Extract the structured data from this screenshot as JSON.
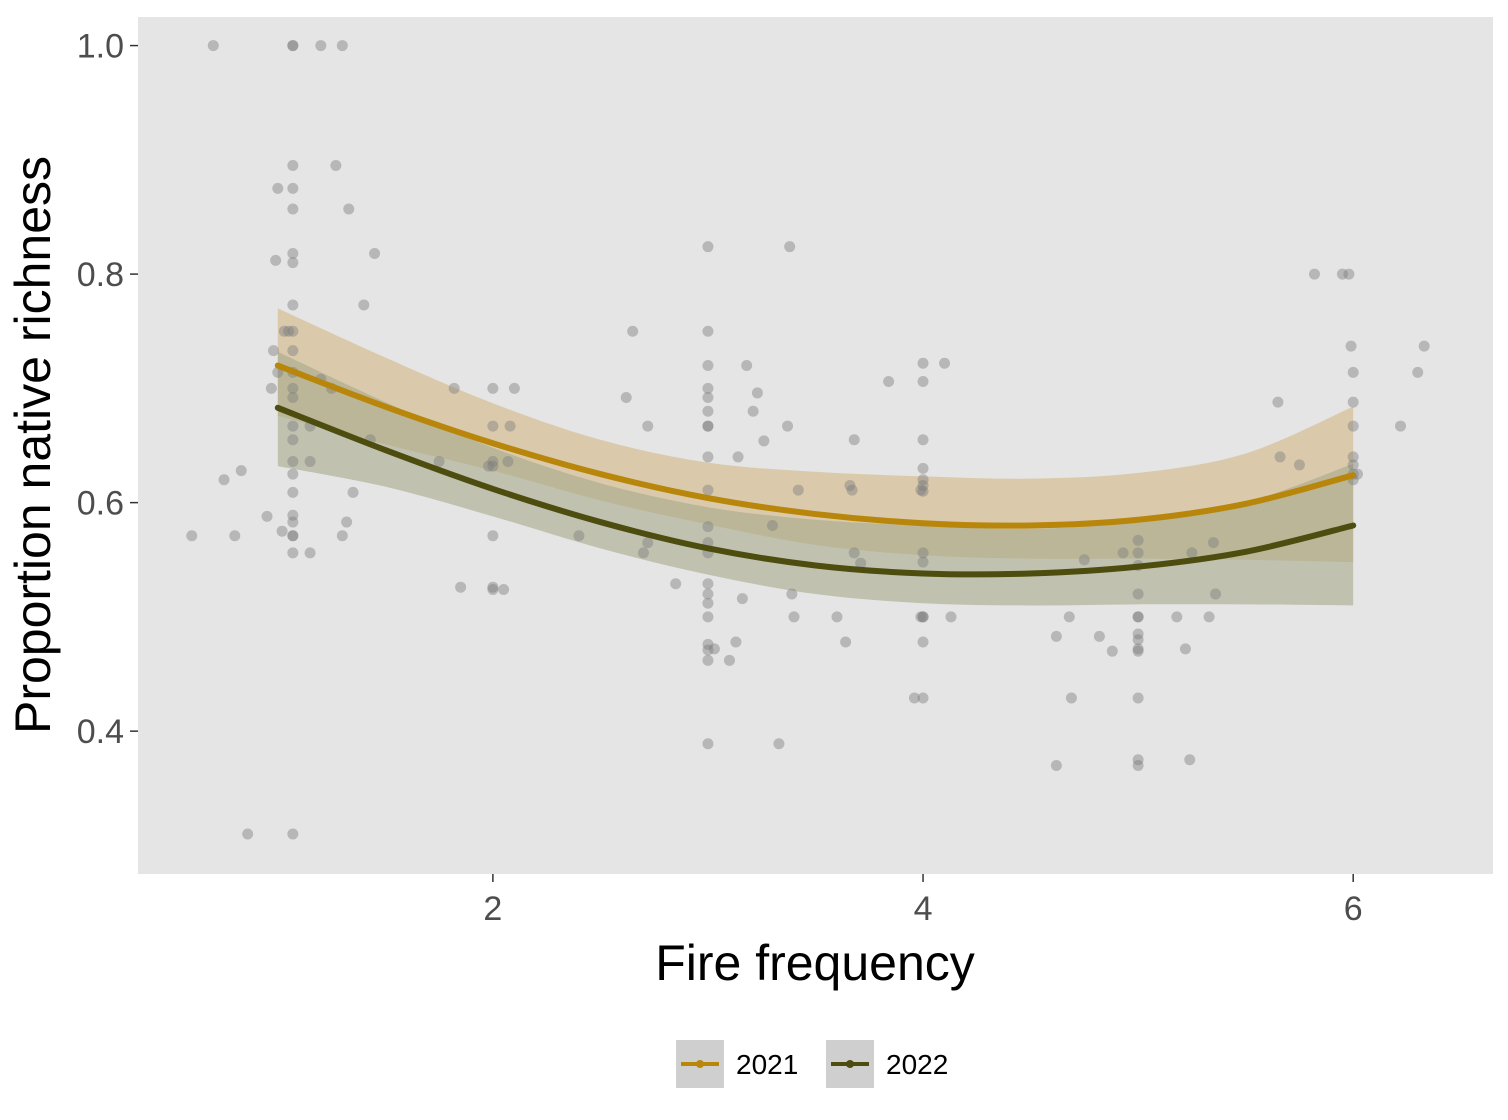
{
  "chart_data": {
    "type": "scatter",
    "xlabel": "Fire frequency",
    "ylabel": "Proportion native richness",
    "xlim": [
      0.35,
      6.65
    ],
    "ylim": [
      0.275,
      1.025
    ],
    "x_ticks": [
      2,
      4,
      6
    ],
    "y_ticks": [
      0.4,
      0.6,
      0.8,
      1.0
    ],
    "x_tick_labels": [
      "2",
      "4",
      "6"
    ],
    "y_tick_labels": [
      "0.4",
      "0.6",
      "0.8",
      "1.0"
    ],
    "grid": false,
    "panel_background": "#e5e5e5",
    "point_color": "#7f7f7f",
    "legend_position": "bottom",
    "points": [
      [
        0.6,
        0.571
      ],
      [
        0.7,
        1.0
      ],
      [
        0.75,
        0.62
      ],
      [
        0.8,
        0.571
      ],
      [
        0.83,
        0.628
      ],
      [
        0.86,
        0.31
      ],
      [
        0.95,
        0.588
      ],
      [
        0.97,
        0.7
      ],
      [
        0.98,
        0.733
      ],
      [
        0.99,
        0.812
      ],
      [
        1.0,
        0.714
      ],
      [
        1.0,
        0.875
      ],
      [
        1.02,
        0.575
      ],
      [
        1.03,
        0.75
      ],
      [
        1.05,
        0.75
      ],
      [
        1.07,
        1.0
      ],
      [
        1.07,
        1.0
      ],
      [
        1.07,
        0.895
      ],
      [
        1.07,
        0.875
      ],
      [
        1.07,
        0.857
      ],
      [
        1.07,
        0.818
      ],
      [
        1.07,
        0.81
      ],
      [
        1.07,
        0.773
      ],
      [
        1.07,
        0.75
      ],
      [
        1.07,
        0.733
      ],
      [
        1.07,
        0.714
      ],
      [
        1.07,
        0.7
      ],
      [
        1.07,
        0.692
      ],
      [
        1.07,
        0.667
      ],
      [
        1.07,
        0.655
      ],
      [
        1.07,
        0.636
      ],
      [
        1.07,
        0.625
      ],
      [
        1.07,
        0.609
      ],
      [
        1.07,
        0.589
      ],
      [
        1.07,
        0.583
      ],
      [
        1.07,
        0.571
      ],
      [
        1.07,
        0.571
      ],
      [
        1.07,
        0.556
      ],
      [
        1.07,
        0.31
      ],
      [
        1.15,
        0.556
      ],
      [
        1.15,
        0.667
      ],
      [
        1.15,
        0.636
      ],
      [
        1.2,
        0.708
      ],
      [
        1.2,
        1.0
      ],
      [
        1.25,
        0.7
      ],
      [
        1.27,
        0.895
      ],
      [
        1.3,
        1.0
      ],
      [
        1.3,
        0.571
      ],
      [
        1.32,
        0.583
      ],
      [
        1.33,
        0.857
      ],
      [
        1.35,
        0.609
      ],
      [
        1.4,
        0.773
      ],
      [
        1.43,
        0.655
      ],
      [
        1.45,
        0.818
      ],
      [
        1.75,
        0.636
      ],
      [
        1.82,
        0.7
      ],
      [
        1.85,
        0.526
      ],
      [
        1.98,
        0.632
      ],
      [
        2.0,
        0.7
      ],
      [
        2.0,
        0.667
      ],
      [
        2.0,
        0.636
      ],
      [
        2.0,
        0.632
      ],
      [
        2.0,
        0.571
      ],
      [
        2.0,
        0.526
      ],
      [
        2.0,
        0.524
      ],
      [
        2.05,
        0.524
      ],
      [
        2.07,
        0.636
      ],
      [
        2.08,
        0.667
      ],
      [
        2.1,
        0.7
      ],
      [
        2.4,
        0.571
      ],
      [
        2.62,
        0.692
      ],
      [
        2.65,
        0.75
      ],
      [
        2.7,
        0.556
      ],
      [
        2.72,
        0.667
      ],
      [
        2.72,
        0.565
      ],
      [
        2.85,
        0.529
      ],
      [
        3.0,
        0.824
      ],
      [
        3.0,
        0.75
      ],
      [
        3.0,
        0.72
      ],
      [
        3.0,
        0.7
      ],
      [
        3.0,
        0.692
      ],
      [
        3.0,
        0.68
      ],
      [
        3.0,
        0.667
      ],
      [
        3.0,
        0.667
      ],
      [
        3.0,
        0.64
      ],
      [
        3.0,
        0.611
      ],
      [
        3.0,
        0.579
      ],
      [
        3.0,
        0.565
      ],
      [
        3.0,
        0.556
      ],
      [
        3.0,
        0.529
      ],
      [
        3.0,
        0.52
      ],
      [
        3.0,
        0.512
      ],
      [
        3.0,
        0.5
      ],
      [
        3.0,
        0.476
      ],
      [
        3.0,
        0.471
      ],
      [
        3.0,
        0.462
      ],
      [
        3.0,
        0.389
      ],
      [
        3.03,
        0.472
      ],
      [
        3.1,
        0.462
      ],
      [
        3.13,
        0.478
      ],
      [
        3.14,
        0.64
      ],
      [
        3.16,
        0.516
      ],
      [
        3.18,
        0.72
      ],
      [
        3.21,
        0.68
      ],
      [
        3.23,
        0.696
      ],
      [
        3.26,
        0.654
      ],
      [
        3.3,
        0.58
      ],
      [
        3.33,
        0.389
      ],
      [
        3.37,
        0.667
      ],
      [
        3.38,
        0.824
      ],
      [
        3.39,
        0.52
      ],
      [
        3.4,
        0.5
      ],
      [
        3.42,
        0.611
      ],
      [
        3.6,
        0.5
      ],
      [
        3.64,
        0.478
      ],
      [
        3.66,
        0.615
      ],
      [
        3.67,
        0.611
      ],
      [
        3.68,
        0.556
      ],
      [
        3.68,
        0.655
      ],
      [
        3.71,
        0.547
      ],
      [
        3.84,
        0.706
      ],
      [
        3.96,
        0.429
      ],
      [
        3.99,
        0.5
      ],
      [
        3.99,
        0.611
      ],
      [
        4.0,
        0.722
      ],
      [
        4.0,
        0.706
      ],
      [
        4.0,
        0.655
      ],
      [
        4.0,
        0.63
      ],
      [
        4.0,
        0.62
      ],
      [
        4.0,
        0.615
      ],
      [
        4.0,
        0.61
      ],
      [
        4.0,
        0.556
      ],
      [
        4.0,
        0.548
      ],
      [
        4.0,
        0.5
      ],
      [
        4.0,
        0.5
      ],
      [
        4.0,
        0.478
      ],
      [
        4.0,
        0.429
      ],
      [
        4.1,
        0.722
      ],
      [
        4.13,
        0.5
      ],
      [
        4.62,
        0.483
      ],
      [
        4.62,
        0.37
      ],
      [
        4.68,
        0.5
      ],
      [
        4.69,
        0.429
      ],
      [
        4.75,
        0.55
      ],
      [
        4.82,
        0.483
      ],
      [
        4.88,
        0.47
      ],
      [
        4.93,
        0.556
      ],
      [
        5.0,
        0.567
      ],
      [
        5.0,
        0.556
      ],
      [
        5.0,
        0.545
      ],
      [
        5.0,
        0.52
      ],
      [
        5.0,
        0.5
      ],
      [
        5.0,
        0.5
      ],
      [
        5.0,
        0.485
      ],
      [
        5.0,
        0.48
      ],
      [
        5.0,
        0.472
      ],
      [
        5.0,
        0.47
      ],
      [
        5.0,
        0.429
      ],
      [
        5.0,
        0.375
      ],
      [
        5.0,
        0.37
      ],
      [
        5.18,
        0.5
      ],
      [
        5.22,
        0.472
      ],
      [
        5.24,
        0.375
      ],
      [
        5.25,
        0.556
      ],
      [
        5.33,
        0.5
      ],
      [
        5.35,
        0.565
      ],
      [
        5.36,
        0.52
      ],
      [
        5.65,
        0.688
      ],
      [
        5.66,
        0.64
      ],
      [
        5.75,
        0.633
      ],
      [
        5.82,
        0.8
      ],
      [
        5.95,
        0.8
      ],
      [
        5.98,
        0.8
      ],
      [
        5.99,
        0.737
      ],
      [
        6.0,
        0.714
      ],
      [
        6.0,
        0.688
      ],
      [
        6.0,
        0.667
      ],
      [
        6.0,
        0.64
      ],
      [
        6.0,
        0.633
      ],
      [
        6.0,
        0.625
      ],
      [
        6.0,
        0.62
      ],
      [
        6.02,
        0.625
      ],
      [
        6.22,
        0.667
      ],
      [
        6.3,
        0.714
      ],
      [
        6.33,
        0.737
      ]
    ],
    "series": [
      {
        "name": "2021",
        "color": "#b8860b",
        "ribbon_color": "#d2b783",
        "x": [
          1,
          1.5,
          2,
          2.5,
          3,
          3.5,
          4,
          4.5,
          5,
          5.5,
          6
        ],
        "fit": [
          0.72,
          0.684,
          0.652,
          0.625,
          0.604,
          0.59,
          0.582,
          0.58,
          0.585,
          0.599,
          0.624
        ],
        "lower": [
          0.676,
          0.651,
          0.628,
          0.602,
          0.581,
          0.563,
          0.554,
          0.551,
          0.551,
          0.55,
          0.548
        ],
        "upper": [
          0.77,
          0.727,
          0.687,
          0.655,
          0.635,
          0.627,
          0.623,
          0.621,
          0.626,
          0.643,
          0.684
        ]
      },
      {
        "name": "2022",
        "color": "#4d4d0f",
        "ribbon_color": "#a7a98a",
        "x": [
          1,
          1.5,
          2,
          2.5,
          3,
          3.5,
          4,
          4.5,
          5,
          5.5,
          6
        ],
        "fit": [
          0.683,
          0.646,
          0.612,
          0.583,
          0.56,
          0.545,
          0.538,
          0.538,
          0.544,
          0.557,
          0.58
        ],
        "lower": [
          0.632,
          0.614,
          0.588,
          0.56,
          0.537,
          0.52,
          0.512,
          0.51,
          0.511,
          0.511,
          0.51
        ],
        "upper": [
          0.732,
          0.688,
          0.648,
          0.617,
          0.596,
          0.585,
          0.58,
          0.577,
          0.583,
          0.6,
          0.634
        ]
      }
    ]
  }
}
